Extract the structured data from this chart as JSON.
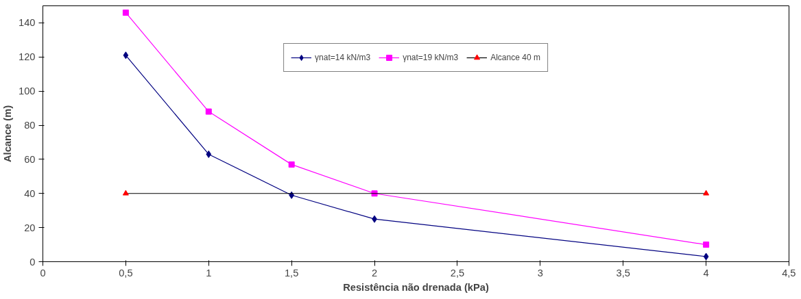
{
  "chart_data": {
    "type": "line",
    "xlabel": "Resistência não drenada (kPa)",
    "ylabel": "Alcance (m)",
    "x": [
      0.5,
      1,
      1.5,
      2,
      4
    ],
    "series": [
      {
        "name": "γnat=14 kN/m3",
        "color": "#000080",
        "marker": "diamond",
        "values": [
          121,
          63,
          39,
          25,
          3
        ]
      },
      {
        "name": "γnat=19 kN/m3",
        "color": "#ff00ff",
        "marker": "square",
        "values": [
          146,
          88,
          57,
          40,
          10
        ]
      },
      {
        "name": "Alcance 40 m",
        "color": "#000000",
        "colors": [
          "#ff0000",
          "#ff0000"
        ],
        "marker": "triangle",
        "x": [
          0.5,
          4
        ],
        "values": [
          40,
          40
        ]
      }
    ],
    "xlim": [
      0,
      4.5
    ],
    "xticks": [
      0,
      {
        "value": 0.5,
        "label": "0,5"
      },
      1,
      {
        "value": 1.5,
        "label": "1,5"
      },
      2,
      {
        "value": 2.5,
        "label": "2,5"
      },
      3,
      {
        "value": 3.5,
        "label": "3,5"
      },
      4,
      {
        "value": 4.5,
        "label": "4,5"
      }
    ],
    "ylim": [
      0,
      150
    ],
    "yticks": [
      0,
      20,
      40,
      60,
      80,
      100,
      120,
      140
    ],
    "legend": "top",
    "grid": false,
    "line_style": "solid"
  }
}
